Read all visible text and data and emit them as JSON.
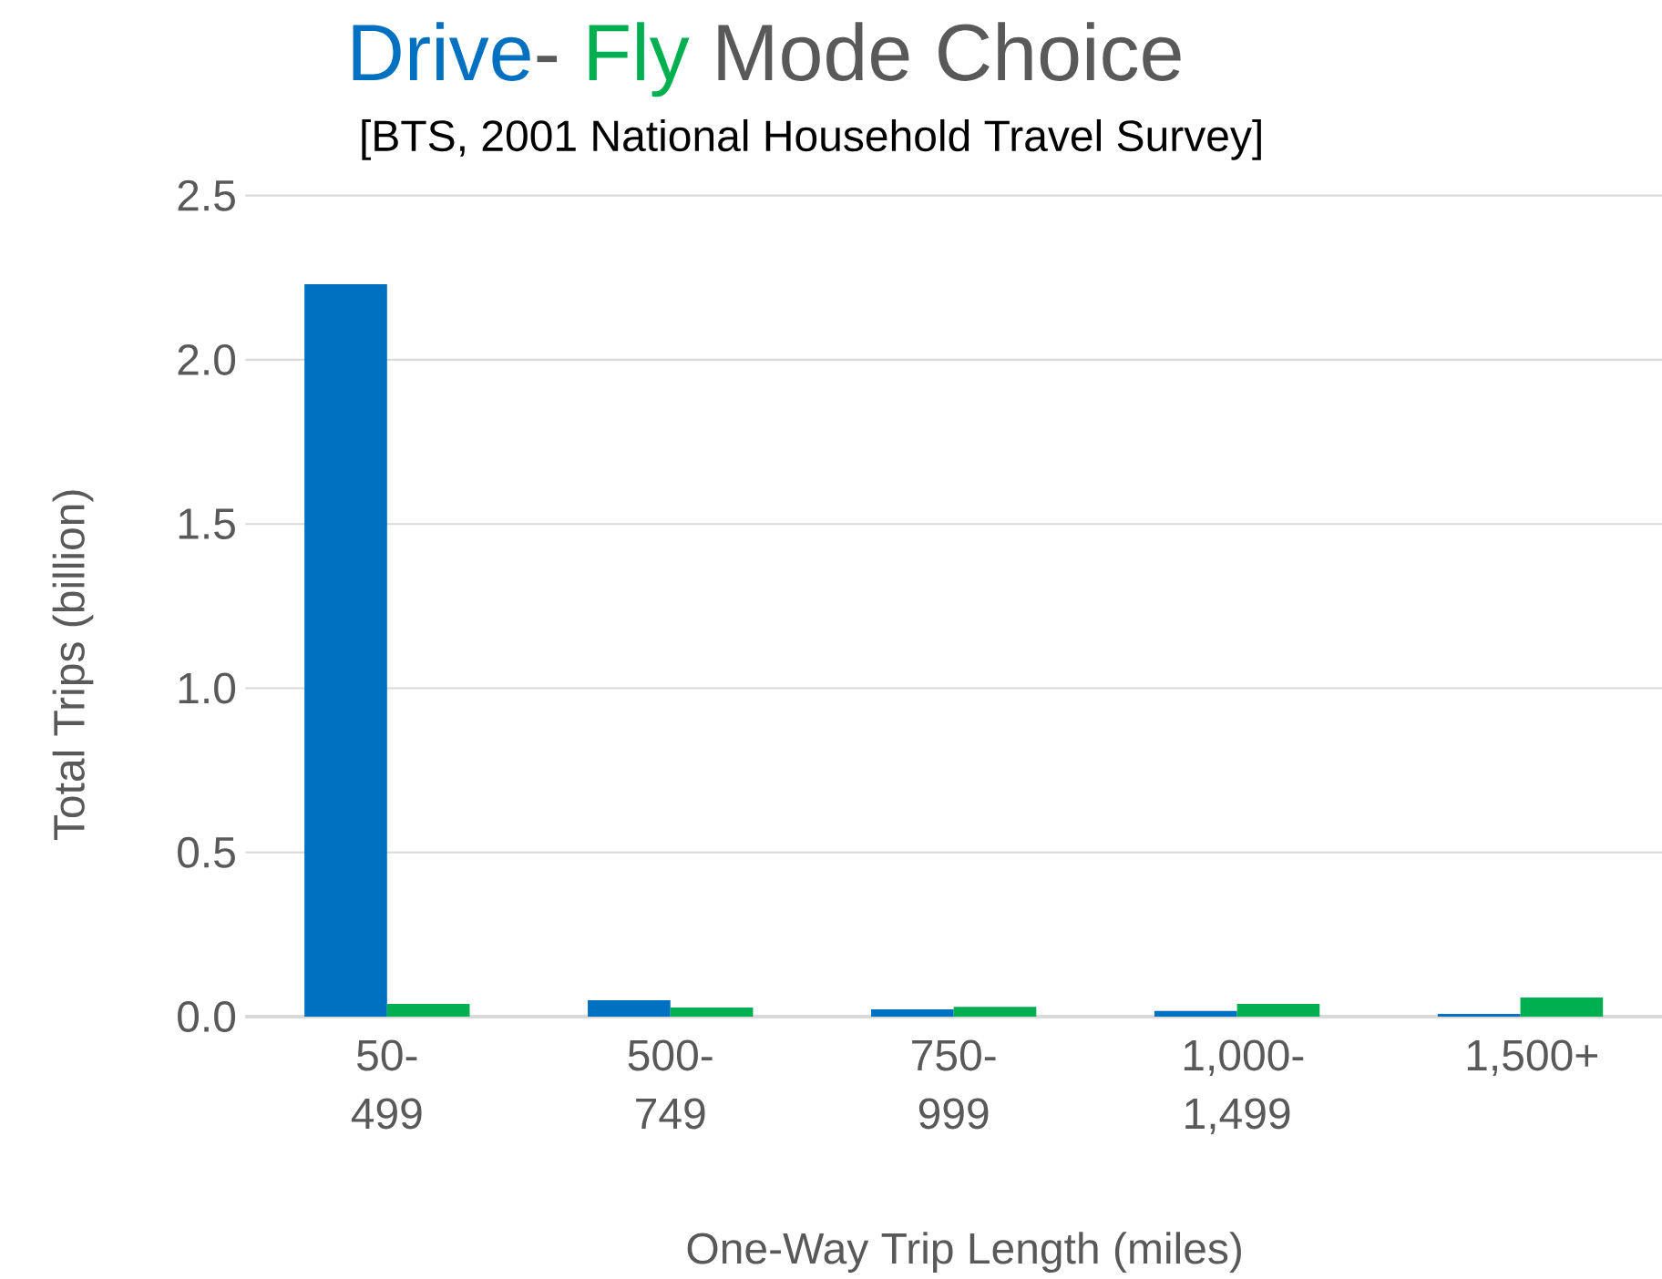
{
  "chart_data": {
    "type": "bar",
    "title": "Mode Choice",
    "subtitle": "[BTS, 2001 National Household Travel Survey]",
    "xlabel": "One-Way Trip Length (miles)",
    "ylabel": "Total Trips (billion)",
    "categories": [
      "50-499",
      "500-749",
      "750-999",
      "1,000-1,499",
      "1,500+"
    ],
    "series": [
      {
        "name": "Drive",
        "color": "#0070c0",
        "values": [
          2.23,
          0.05,
          0.022,
          0.017,
          0.008
        ]
      },
      {
        "name": "Fly",
        "color": "#00b050",
        "values": [
          0.039,
          0.028,
          0.03,
          0.039,
          0.058
        ]
      }
    ],
    "ylim": [
      0,
      2.5
    ],
    "yticks": [
      {
        "value": 0,
        "label": "0.0"
      },
      {
        "value": 0.5,
        "label": "0.5"
      },
      {
        "value": 1,
        "label": "1.0"
      },
      {
        "value": 1.5,
        "label": "1.5"
      },
      {
        "value": 2,
        "label": "2.0"
      },
      {
        "value": 2.5,
        "label": "2.5"
      }
    ],
    "grid": "y",
    "annotations": [
      "-"
    ]
  }
}
